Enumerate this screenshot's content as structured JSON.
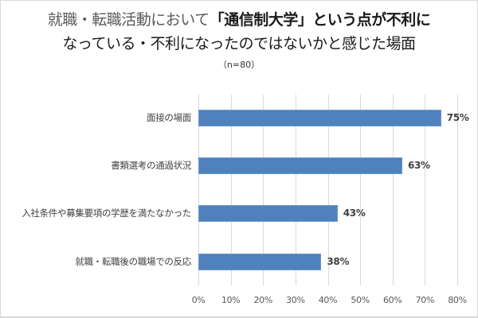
{
  "chart_data": {
    "type": "bar",
    "orientation": "horizontal",
    "title_line1_plain": "就職・転職活動において",
    "title_line1_emph": "「通信制大学」",
    "title_line1_tail": "という点が不利に",
    "title_line2": "なっている・不利になったのではないかと感じた場面",
    "title": "就職・転職活動において「通信制大学」という点が不利になっている・不利になったのではないかと感じた場面",
    "subtitle": "（n=80）",
    "categories": [
      "面接の場面",
      "書類選考の通過状況",
      "入社条件や募集要項の学歴を満たなかった",
      "就職・転職後の職場での反応"
    ],
    "values": [
      75,
      63,
      43,
      38
    ],
    "value_labels": [
      "75%",
      "63%",
      "43%",
      "38%"
    ],
    "xlabel": "",
    "ylabel": "",
    "xlim": [
      0,
      80
    ],
    "x_ticks": [
      "0%",
      "10%",
      "20%",
      "30%",
      "40%",
      "50%",
      "60%",
      "70%",
      "80%"
    ],
    "grid": true,
    "legend": null,
    "bar_color": "#4f81bd"
  }
}
